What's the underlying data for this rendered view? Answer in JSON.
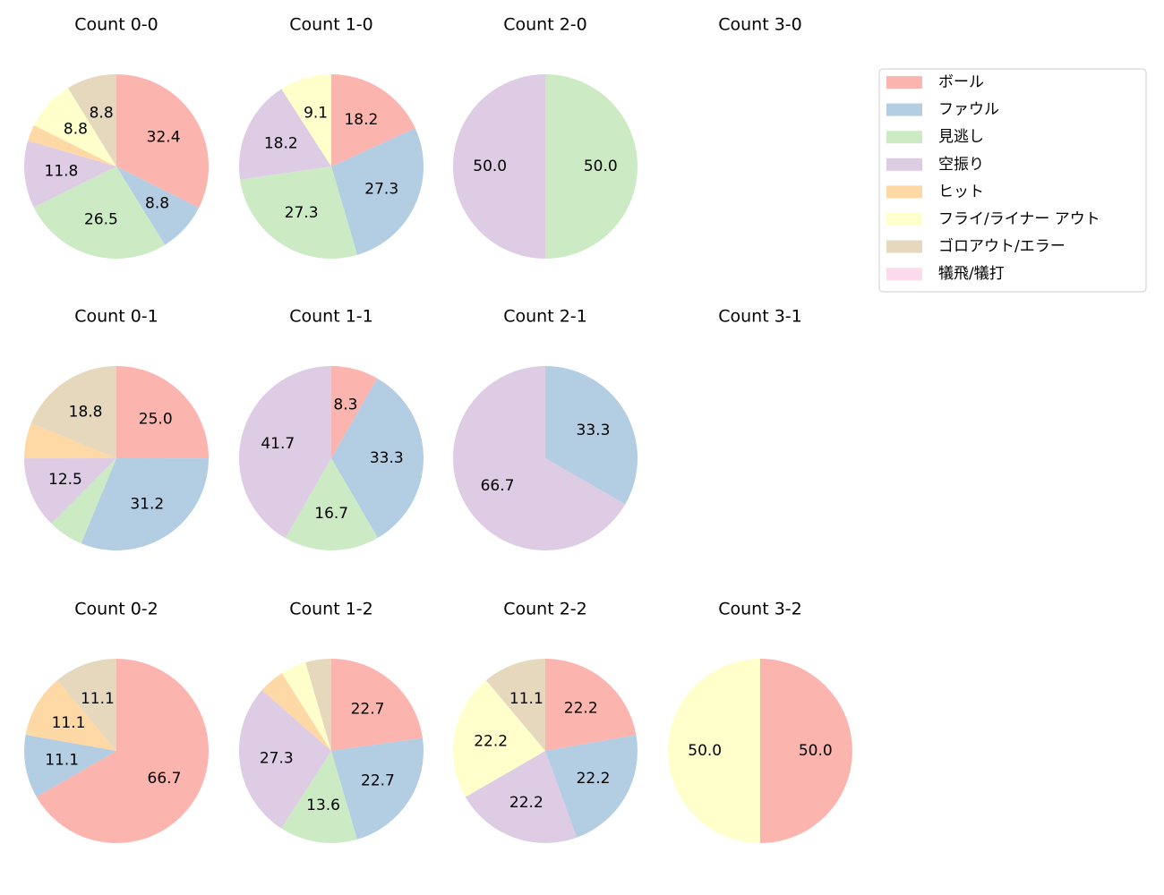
{
  "chart_data": {
    "type": "pie",
    "categories": [
      "ボール",
      "ファウル",
      "見逃し",
      "空振り",
      "ヒット",
      "フライ/ライナー アウト",
      "ゴロアウト/エラー",
      "犠飛/犠打"
    ],
    "colors": [
      "#fbb4ae",
      "#b3cde3",
      "#ccebc5",
      "#decbe4",
      "#fed9a6",
      "#ffffcc",
      "#e5d8bd",
      "#fddaec"
    ],
    "legend": "upper right",
    "pies": [
      {
        "title": "Count 0-0",
        "values": [
          32.4,
          8.8,
          26.5,
          11.8,
          2.9,
          8.8,
          8.8,
          0
        ],
        "value_labels": [
          "32.4",
          "8.8",
          "26.5",
          "11.8",
          null,
          "8.8",
          "8.8",
          null
        ]
      },
      {
        "title": "Count 1-0",
        "values": [
          18.2,
          27.3,
          27.3,
          18.2,
          0,
          9.1,
          0,
          0
        ],
        "value_labels": [
          "18.2",
          "27.3",
          "27.3",
          "18.2",
          null,
          "9.1",
          null,
          null
        ]
      },
      {
        "title": "Count 2-0",
        "values": [
          0,
          0,
          50,
          50,
          0,
          0,
          0,
          0
        ],
        "value_labels": [
          null,
          null,
          "50.0",
          "50.0",
          null,
          null,
          null,
          null
        ]
      },
      {
        "title": "Count 3-0",
        "values": [],
        "value_labels": []
      },
      {
        "title": "Count 0-1",
        "values": [
          25,
          31.2,
          6.2,
          12.5,
          6.2,
          0,
          18.8,
          0
        ],
        "value_labels": [
          "25.0",
          "31.2",
          null,
          "12.5",
          null,
          null,
          "18.8",
          null
        ]
      },
      {
        "title": "Count 1-1",
        "values": [
          8.3,
          33.3,
          16.7,
          41.7,
          0,
          0,
          0,
          0
        ],
        "value_labels": [
          "8.3",
          "33.3",
          "16.7",
          "41.7",
          null,
          null,
          null,
          null
        ]
      },
      {
        "title": "Count 2-1",
        "values": [
          0,
          33.3,
          0,
          66.7,
          0,
          0,
          0,
          0
        ],
        "value_labels": [
          null,
          "33.3",
          null,
          "66.7",
          null,
          null,
          null,
          null
        ]
      },
      {
        "title": "Count 3-1",
        "values": [],
        "value_labels": []
      },
      {
        "title": "Count 0-2",
        "values": [
          66.7,
          11.1,
          0,
          0,
          11.1,
          0,
          11.1,
          0
        ],
        "value_labels": [
          "66.7",
          "11.1",
          null,
          null,
          "11.1",
          null,
          "11.1",
          null
        ]
      },
      {
        "title": "Count 1-2",
        "values": [
          22.7,
          22.7,
          13.6,
          27.3,
          4.5,
          4.5,
          4.5,
          0
        ],
        "value_labels": [
          "22.7",
          "22.7",
          "13.6",
          "27.3",
          null,
          null,
          null,
          null
        ]
      },
      {
        "title": "Count 2-2",
        "values": [
          22.2,
          22.2,
          0,
          22.2,
          0,
          22.2,
          11.1,
          0
        ],
        "value_labels": [
          "22.2",
          "22.2",
          null,
          "22.2",
          null,
          "22.2",
          "11.1",
          null
        ]
      },
      {
        "title": "Count 3-2",
        "values": [
          50,
          0,
          0,
          0,
          0,
          50,
          0,
          0
        ],
        "value_labels": [
          "50.0",
          null,
          null,
          null,
          null,
          "50.0",
          null,
          null
        ]
      }
    ]
  }
}
